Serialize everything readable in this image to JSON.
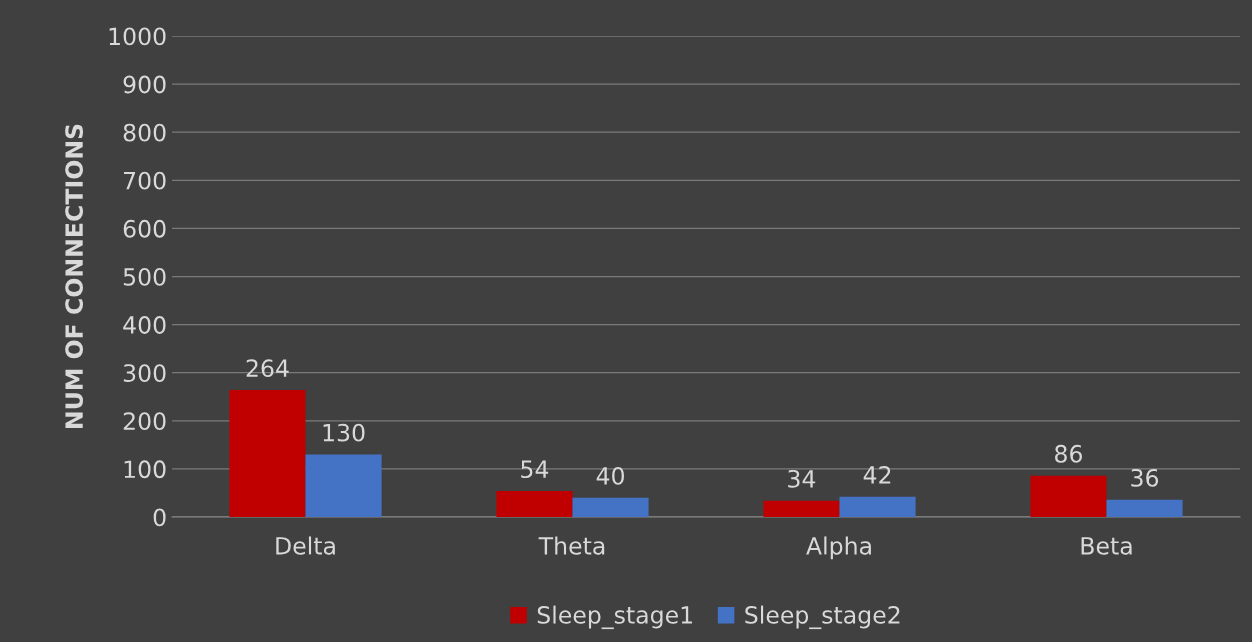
{
  "chart_data": {
    "type": "bar",
    "ylabel": "NUM OF CONNECTIONS",
    "categories": [
      "Delta",
      "Theta",
      "Alpha",
      "Beta"
    ],
    "series": [
      {
        "name": "Sleep_stage1",
        "color": "#c00000",
        "values": [
          264,
          54,
          34,
          86
        ]
      },
      {
        "name": "Sleep_stage2",
        "color": "#4472c4",
        "values": [
          130,
          40,
          42,
          36
        ]
      }
    ],
    "ylim": [
      0,
      1000
    ],
    "yticks": [
      0,
      100,
      200,
      300,
      400,
      500,
      600,
      700,
      800,
      900,
      1000
    ],
    "grid": "y",
    "legend": "bottom",
    "data_labels": true
  }
}
